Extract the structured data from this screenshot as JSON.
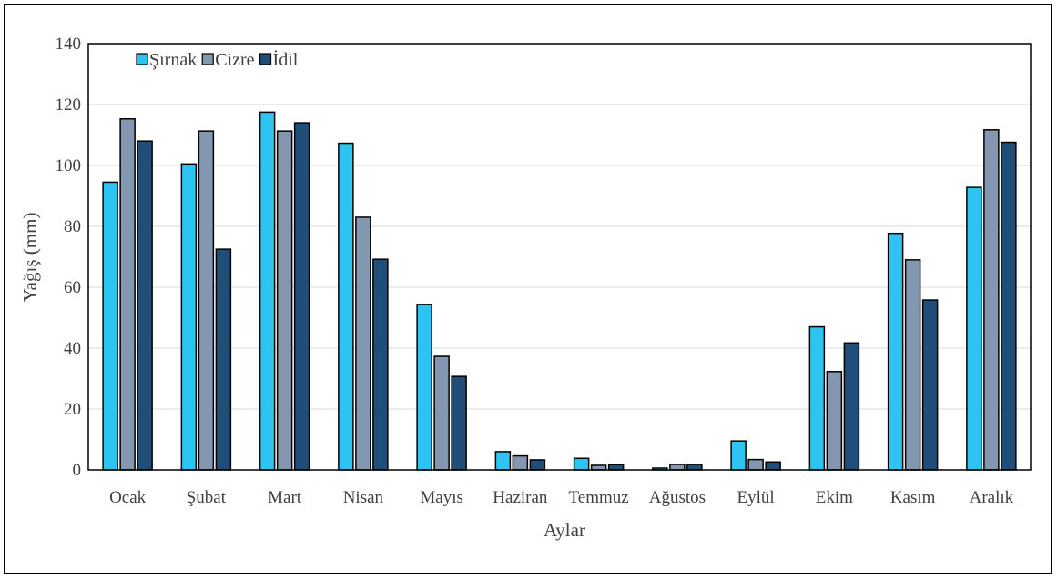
{
  "chart_data": {
    "type": "bar",
    "xlabel": "Aylar",
    "ylabel": "Yağış (mm)",
    "ylim": [
      0,
      140
    ],
    "yticks": [
      0,
      20,
      40,
      60,
      80,
      100,
      120,
      140
    ],
    "grid": true,
    "legend_position": "top-left",
    "categories": [
      "Ocak",
      "Şubat",
      "Mart",
      "Nisan",
      "Mayıs",
      "Haziran",
      "Temmuz",
      "Ağustos",
      "Eylül",
      "Ekim",
      "Kasım",
      "Aralık"
    ],
    "series": [
      {
        "name": "Şırnak",
        "color": "#2ec4f2",
        "values": [
          94.5,
          100.5,
          117.5,
          107.3,
          54.3,
          6.0,
          3.8,
          0.6,
          9.5,
          47.0,
          77.7,
          92.8
        ]
      },
      {
        "name": "Cizre",
        "color": "#8497b0",
        "values": [
          115.3,
          111.3,
          111.3,
          83.0,
          37.3,
          4.6,
          1.5,
          1.8,
          3.4,
          32.3,
          69.0,
          111.7
        ]
      },
      {
        "name": "İdil",
        "color": "#1f4e79",
        "values": [
          108.0,
          72.5,
          114.0,
          69.2,
          30.7,
          3.3,
          1.7,
          1.8,
          2.6,
          41.7,
          55.8,
          107.6
        ]
      }
    ]
  }
}
